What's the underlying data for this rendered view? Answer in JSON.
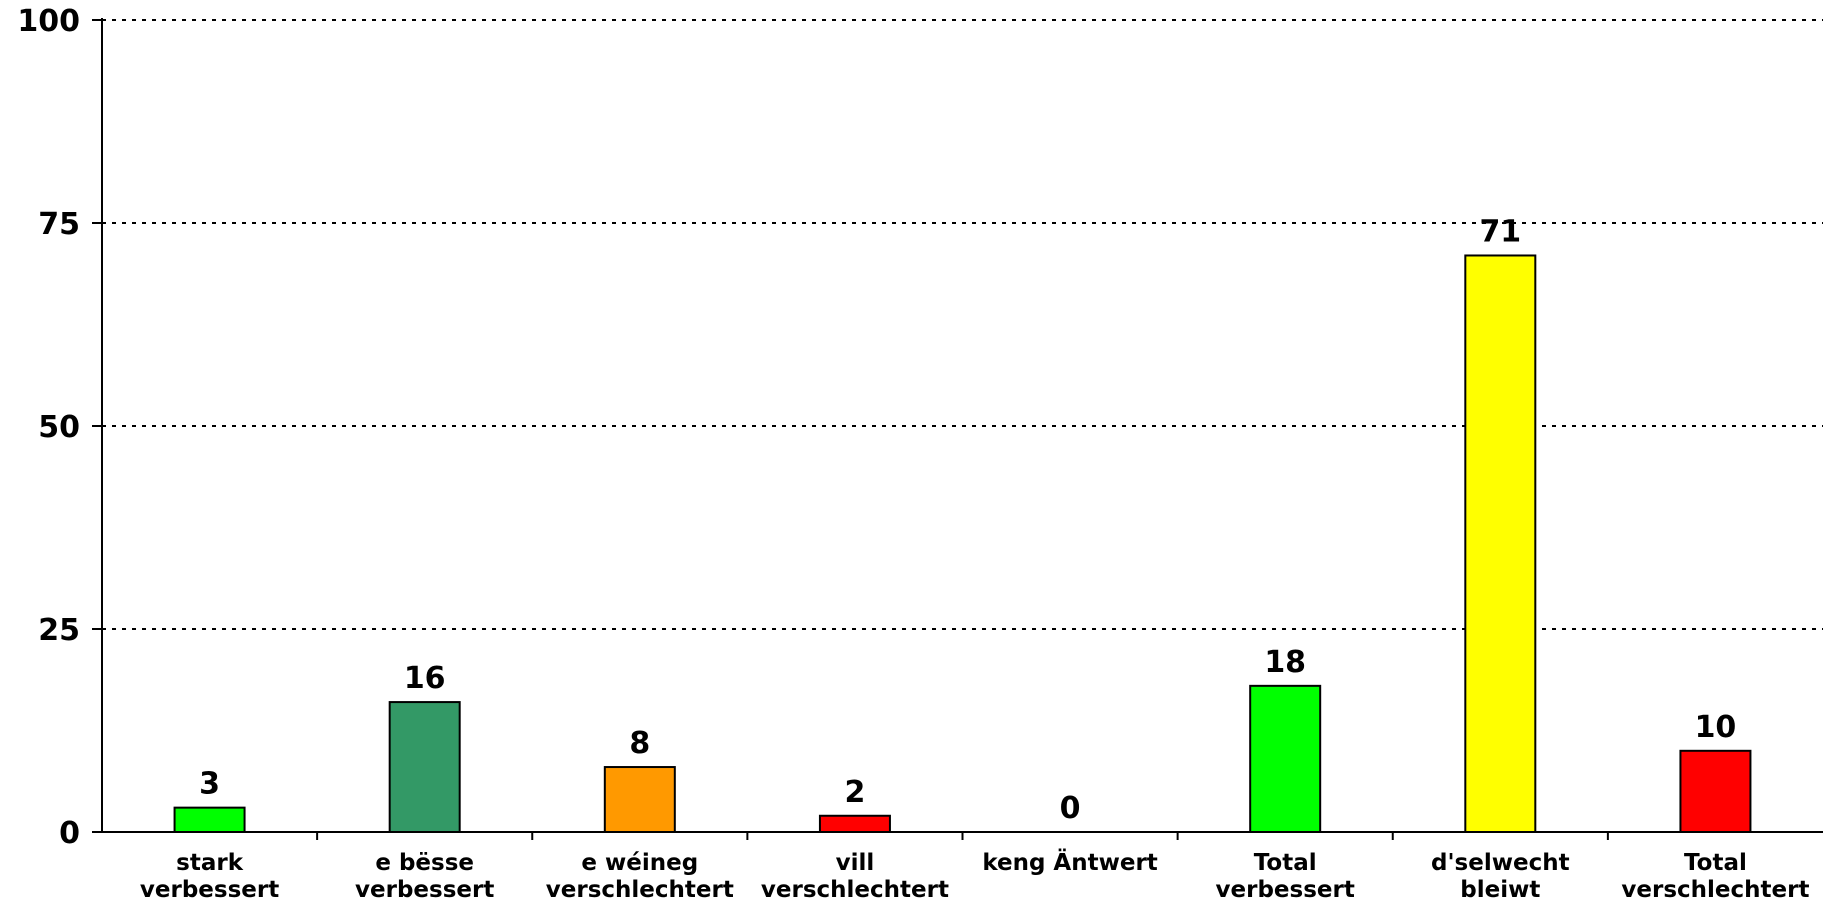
{
  "chart_data": {
    "type": "bar",
    "categories": [
      [
        "stark",
        "verbessert"
      ],
      [
        "e bësse",
        "verbessert"
      ],
      [
        "e wéineg",
        "verschlechtert"
      ],
      [
        "vill",
        "verschlechtert"
      ],
      [
        "keng Äntwert"
      ],
      [
        "Total",
        "verbessert"
      ],
      [
        "d'selwecht",
        "bleiwt"
      ],
      [
        "Total",
        "verschlechtert"
      ]
    ],
    "values": [
      3,
      16,
      8,
      2,
      0,
      18,
      71,
      10
    ],
    "data_labels": [
      "3",
      "16",
      "8",
      "2",
      "0",
      "18",
      "71",
      "10"
    ],
    "colors": [
      "#00ff00",
      "#339966",
      "#ff9900",
      "#ff0000",
      "#ffffff",
      "#00ff00",
      "#ffff00",
      "#ff0000"
    ],
    "ylim": [
      0,
      100
    ],
    "yticks": [
      0,
      25,
      50,
      75,
      100
    ],
    "ytick_labels": [
      "0",
      "25",
      "50",
      "75",
      "100"
    ],
    "grid": "dotted horizontal",
    "legend": "none",
    "title": "",
    "xlabel": "",
    "ylabel": ""
  }
}
